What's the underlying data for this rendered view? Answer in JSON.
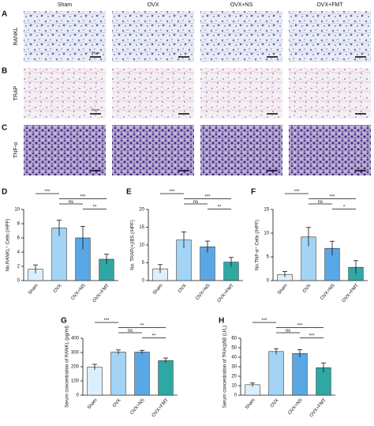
{
  "figure": {
    "columns": [
      "Sham",
      "OVX",
      "OVX+NS",
      "OVX+FMT"
    ],
    "rows": [
      {
        "letter": "A",
        "label": "RANKL",
        "scale_text": "50μm"
      },
      {
        "letter": "B",
        "label": "TRAP",
        "scale_text": "50μm"
      },
      {
        "letter": "C",
        "label": "TNF-α"
      }
    ]
  },
  "chart_data": [
    {
      "type": "bar",
      "panel": "D",
      "ylabel": "No.RANKL⁺ Cells (/HPF)",
      "categories": [
        "Sham",
        "OVX",
        "OVX+NS",
        "OVX+FMT"
      ],
      "values": [
        1.6,
        7.4,
        6.0,
        3.0
      ],
      "errors": [
        0.6,
        1.1,
        1.6,
        0.7
      ],
      "colors": [
        "#dcefff",
        "#a3d4f5",
        "#5aa7e6",
        "#2fa8a3"
      ],
      "ylim": [
        0,
        10
      ],
      "yticks": [
        0,
        2,
        4,
        6,
        8,
        10
      ],
      "significance": [
        {
          "from": 0,
          "to": 1,
          "label": "***"
        },
        {
          "from": 1,
          "to": 3,
          "label": "***"
        },
        {
          "from": 1,
          "to": 2,
          "label": "ns"
        },
        {
          "from": 2,
          "to": 3,
          "label": "**"
        }
      ]
    },
    {
      "type": "bar",
      "panel": "E",
      "ylabel": "No. TRAP(+)/BS (/HPF)",
      "categories": [
        "Sham",
        "OVX",
        "OVX+NS",
        "OVX+FMT"
      ],
      "values": [
        3.3,
        11.4,
        9.5,
        5.2
      ],
      "errors": [
        1.2,
        2.3,
        1.6,
        1.3
      ],
      "colors": [
        "#dcefff",
        "#a3d4f5",
        "#5aa7e6",
        "#2fa8a3"
      ],
      "ylim": [
        0,
        20
      ],
      "yticks": [
        0,
        5,
        10,
        15,
        20
      ],
      "significance": [
        {
          "from": 0,
          "to": 1,
          "label": "***"
        },
        {
          "from": 1,
          "to": 3,
          "label": "***"
        },
        {
          "from": 1,
          "to": 2,
          "label": "ns"
        },
        {
          "from": 2,
          "to": 3,
          "label": "**"
        }
      ]
    },
    {
      "type": "bar",
      "panel": "F",
      "ylabel": "No.TNF-α⁺ Cells (/HPF)",
      "categories": [
        "Sham",
        "OVX",
        "OVX+NS",
        "OVX+FMT"
      ],
      "values": [
        1.3,
        9.2,
        6.8,
        2.8
      ],
      "errors": [
        0.6,
        2.0,
        1.5,
        1.4
      ],
      "colors": [
        "#dcefff",
        "#a3d4f5",
        "#5aa7e6",
        "#2fa8a3"
      ],
      "ylim": [
        0,
        15
      ],
      "yticks": [
        0,
        5,
        10,
        15
      ],
      "significance": [
        {
          "from": 0,
          "to": 1,
          "label": "***"
        },
        {
          "from": 1,
          "to": 3,
          "label": "***"
        },
        {
          "from": 1,
          "to": 2,
          "label": "ns"
        },
        {
          "from": 2,
          "to": 3,
          "label": "*"
        }
      ]
    },
    {
      "type": "bar",
      "panel": "G",
      "ylabel": "Serum concentration of RANKL (pg/ml)",
      "categories": [
        "Sham",
        "OVX",
        "OVX+NS",
        "OVX+FMT"
      ],
      "values": [
        197,
        303,
        303,
        243
      ],
      "errors": [
        20,
        15,
        12,
        18
      ],
      "colors": [
        "#dcefff",
        "#a3d4f5",
        "#5aa7e6",
        "#2fa8a3"
      ],
      "ylim": [
        0,
        400
      ],
      "yticks": [
        0,
        100,
        200,
        300,
        400
      ],
      "significance": [
        {
          "from": 0,
          "to": 1,
          "label": "***"
        },
        {
          "from": 1,
          "to": 3,
          "label": "**"
        },
        {
          "from": 1,
          "to": 2,
          "label": "ns"
        },
        {
          "from": 2,
          "to": 3,
          "label": "**"
        }
      ]
    },
    {
      "type": "bar",
      "panel": "H",
      "ylabel": "Serum concentration of TRAcp5B (U/L)",
      "categories": [
        "Sham",
        "OVX",
        "OVX+NS",
        "OVX+FMT"
      ],
      "values": [
        11,
        46,
        44,
        29
      ],
      "errors": [
        2,
        3,
        4,
        5
      ],
      "colors": [
        "#dcefff",
        "#a3d4f5",
        "#5aa7e6",
        "#2fa8a3"
      ],
      "ylim": [
        0,
        60
      ],
      "yticks": [
        0,
        10,
        20,
        30,
        40,
        50,
        60
      ],
      "significance": [
        {
          "from": 0,
          "to": 1,
          "label": "***"
        },
        {
          "from": 1,
          "to": 3,
          "label": "***"
        },
        {
          "from": 1,
          "to": 2,
          "label": "ns"
        },
        {
          "from": 2,
          "to": 3,
          "label": "***"
        }
      ]
    }
  ]
}
